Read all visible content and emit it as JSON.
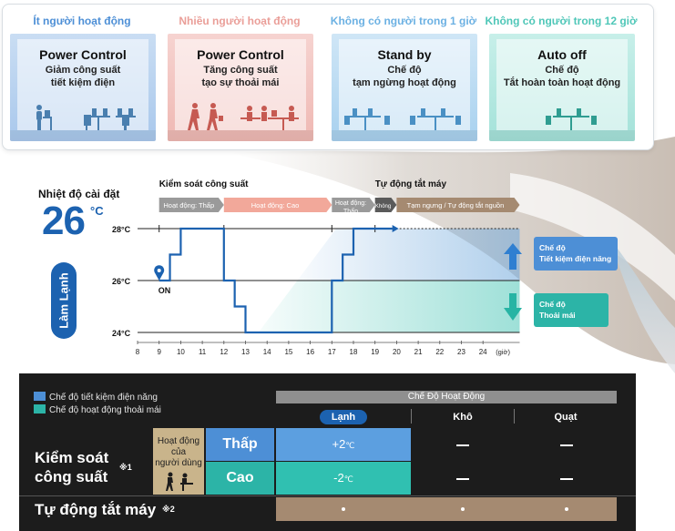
{
  "colors": {
    "low_occupancy": "#4d8fd6",
    "high_occupancy": "#ea9e98",
    "standby": "#6cb1e3",
    "auto_off": "#4fc7b8",
    "blue_primary": "#1c62b0",
    "teal": "#2cb4a7",
    "brown": "#a58a71"
  },
  "panels": [
    {
      "label": "Ít người hoạt động",
      "title": "Power Control",
      "line1": "Giảm công suất",
      "line2": "tiết kiệm điện",
      "icon": "person-at-desk-icon"
    },
    {
      "label": "Nhiều người hoạt động",
      "title": "Power Control",
      "line1": "Tăng công suất",
      "line2": "tạo sự thoải mái",
      "icon": "people-walking-icon"
    },
    {
      "label": "Không có người trong 1 giờ",
      "title": "Stand by",
      "line1": "Chế độ",
      "line2": "tạm ngừng hoạt động",
      "icon": "empty-office-icon"
    },
    {
      "label": "Không có người trong 12 giờ",
      "title": "Auto off",
      "line1": "Chế độ",
      "line2": "Tắt hoàn toàn hoạt động",
      "icon": "empty-office-icon"
    }
  ],
  "setpoint": {
    "label": "Nhiệt độ cài đặt",
    "value": "26",
    "unit": "°C",
    "mode": "Làm Lạnh"
  },
  "chart_data": {
    "type": "line",
    "xlabel": "(giờ)",
    "ylabel": "",
    "x": [
      8,
      9,
      10,
      11,
      12,
      13,
      14,
      15,
      16,
      17,
      18,
      19,
      20,
      21,
      22,
      23,
      24
    ],
    "y_ticks": [
      "28°C",
      "26°C",
      "24°C"
    ],
    "ylim": [
      24,
      28
    ],
    "start_marker": "ON",
    "series": [
      {
        "points": [
          [
            9,
            26
          ],
          [
            9.5,
            26
          ],
          [
            9.5,
            27
          ],
          [
            10,
            27
          ],
          [
            10,
            28
          ],
          [
            12,
            28
          ],
          [
            12,
            26
          ],
          [
            12.5,
            26
          ],
          [
            12.5,
            25
          ],
          [
            13,
            25
          ],
          [
            13,
            24
          ],
          [
            17,
            24
          ],
          [
            17,
            26
          ],
          [
            17.5,
            26
          ],
          [
            17.5,
            27
          ],
          [
            18,
            27
          ],
          [
            18,
            28
          ],
          [
            19.8,
            28
          ]
        ]
      }
    ],
    "segment_headers": {
      "power_control": "Kiểm soát công suất",
      "auto_off": "Tự động tắt máy"
    },
    "segments": [
      {
        "label": "Hoạt động: Thấp",
        "from": 9,
        "to": 12
      },
      {
        "label": "Hoạt động: Cao",
        "from": 12,
        "to": 17
      },
      {
        "label1": "Hoạt động:",
        "label2": "Thấp",
        "from": 17,
        "to": 19
      },
      {
        "label": "Không",
        "from": 19,
        "to": 20
      },
      {
        "label": "Tạm ngưng / Tự động tắt nguồn",
        "from": 20,
        "to": 25.7
      }
    ],
    "arrows": [
      {
        "line1": "Chế độ",
        "line2": "Tiết kiệm điện năng",
        "direction": "up"
      },
      {
        "line1": "Chế độ",
        "line2": "Thoải mái",
        "direction": "down"
      }
    ]
  },
  "table": {
    "legend": [
      {
        "label": "Chế độ tiết kiệm điện năng",
        "color": "#4d8fd6"
      },
      {
        "label": "Chế độ hoạt động thoải mái",
        "color": "#2cb4a7"
      }
    ],
    "mode_header": "Chế Độ Hoạt Động",
    "columns": [
      "Lạnh",
      "Khô",
      "Quạt"
    ],
    "power_control_label1": "Kiểm soát",
    "power_control_label2": "công suất",
    "note1": "※1",
    "user_activity1": "Hoạt động",
    "user_activity2": "của",
    "user_activity3": "người dùng",
    "low": "Thấp",
    "high": "Cao",
    "low_value": "+2",
    "high_value": "-2",
    "unit": "℃",
    "auto_off_label": "Tự động tắt máy",
    "note2": "※2"
  }
}
